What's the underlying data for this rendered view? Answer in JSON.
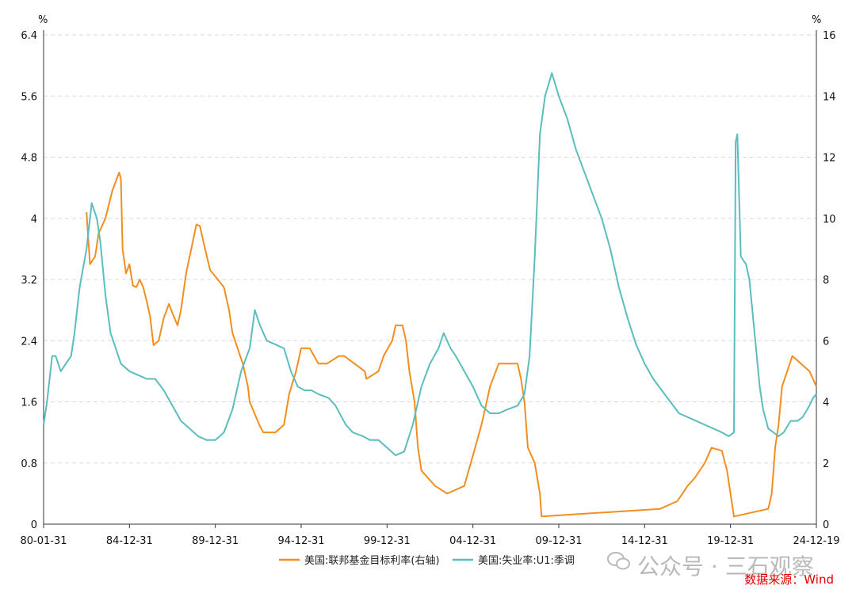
{
  "chart_data": {
    "type": "line",
    "title": "",
    "left_axis": {
      "unit": "%",
      "range": [
        0,
        6.4
      ],
      "ticks": [
        "0",
        "0.8",
        "1.6",
        "2.4",
        "3.2",
        "4",
        "4.8",
        "5.6",
        "6.4"
      ]
    },
    "right_axis": {
      "unit": "%",
      "range": [
        0,
        16
      ],
      "ticks": [
        "0",
        "2",
        "4",
        "6",
        "8",
        "10",
        "12",
        "14",
        "16"
      ]
    },
    "x_ticks": [
      {
        "label": "80-01-31",
        "year": 1980.0
      },
      {
        "label": "84-12-31",
        "year": 1985.0
      },
      {
        "label": "89-12-31",
        "year": 1990.0
      },
      {
        "label": "94-12-31",
        "year": 1995.0
      },
      {
        "label": "99-12-31",
        "year": 2000.0
      },
      {
        "label": "04-12-31",
        "year": 2005.0
      },
      {
        "label": "09-12-31",
        "year": 2010.0
      },
      {
        "label": "14-12-31",
        "year": 2015.0
      },
      {
        "label": "19-12-31",
        "year": 2020.0
      },
      {
        "label": "24-12-19",
        "year": 2025.0
      }
    ],
    "grid": "horizontal-dashed",
    "legend_position": "bottom",
    "series": [
      {
        "name": "美国:联邦基金目标利率(右轴)",
        "axis": "right",
        "color": "#f28e1f",
        "points": [
          [
            1982.5,
            10.2
          ],
          [
            1982.7,
            8.5
          ],
          [
            1983.0,
            8.75
          ],
          [
            1983.2,
            9.5
          ],
          [
            1983.6,
            10.0
          ],
          [
            1984.0,
            10.9
          ],
          [
            1984.4,
            11.5
          ],
          [
            1984.5,
            11.3
          ],
          [
            1984.6,
            9.0
          ],
          [
            1984.8,
            8.2
          ],
          [
            1985.0,
            8.5
          ],
          [
            1985.2,
            7.8
          ],
          [
            1985.4,
            7.75
          ],
          [
            1985.6,
            8.0
          ],
          [
            1985.8,
            7.75
          ],
          [
            1986.0,
            7.3
          ],
          [
            1986.2,
            6.8
          ],
          [
            1986.4,
            5.85
          ],
          [
            1986.7,
            6.0
          ],
          [
            1987.0,
            6.75
          ],
          [
            1987.3,
            7.2
          ],
          [
            1987.5,
            6.9
          ],
          [
            1987.8,
            6.5
          ],
          [
            1988.0,
            7.0
          ],
          [
            1988.3,
            8.2
          ],
          [
            1988.6,
            9.0
          ],
          [
            1988.9,
            9.8
          ],
          [
            1989.1,
            9.75
          ],
          [
            1989.4,
            9.0
          ],
          [
            1989.7,
            8.3
          ],
          [
            1990.0,
            8.1
          ],
          [
            1990.5,
            7.75
          ],
          [
            1990.8,
            7.0
          ],
          [
            1991.0,
            6.25
          ],
          [
            1991.3,
            5.75
          ],
          [
            1991.6,
            5.25
          ],
          [
            1991.9,
            4.5
          ],
          [
            1992.0,
            4.0
          ],
          [
            1992.3,
            3.6
          ],
          [
            1992.6,
            3.2
          ],
          [
            1992.8,
            3.0
          ],
          [
            1993.5,
            3.0
          ],
          [
            1994.0,
            3.25
          ],
          [
            1994.3,
            4.25
          ],
          [
            1994.7,
            5.0
          ],
          [
            1995.0,
            5.75
          ],
          [
            1995.5,
            5.75
          ],
          [
            1996.0,
            5.25
          ],
          [
            1996.5,
            5.25
          ],
          [
            1997.2,
            5.5
          ],
          [
            1997.5,
            5.5
          ],
          [
            1998.7,
            5.0
          ],
          [
            1998.8,
            4.75
          ],
          [
            1999.5,
            5.0
          ],
          [
            1999.8,
            5.5
          ],
          [
            2000.3,
            6.0
          ],
          [
            2000.5,
            6.5
          ],
          [
            2000.9,
            6.5
          ],
          [
            2001.1,
            6.0
          ],
          [
            2001.3,
            5.0
          ],
          [
            2001.6,
            4.0
          ],
          [
            2001.8,
            2.5
          ],
          [
            2002.0,
            1.75
          ],
          [
            2002.8,
            1.25
          ],
          [
            2003.5,
            1.0
          ],
          [
            2004.5,
            1.25
          ],
          [
            2005.0,
            2.25
          ],
          [
            2005.5,
            3.25
          ],
          [
            2006.0,
            4.5
          ],
          [
            2006.5,
            5.25
          ],
          [
            2007.6,
            5.25
          ],
          [
            2007.8,
            4.75
          ],
          [
            2008.0,
            4.0
          ],
          [
            2008.2,
            2.5
          ],
          [
            2008.6,
            2.0
          ],
          [
            2008.9,
            1.0
          ],
          [
            2009.0,
            0.25
          ],
          [
            2015.9,
            0.5
          ],
          [
            2016.9,
            0.75
          ],
          [
            2017.2,
            1.0
          ],
          [
            2017.5,
            1.25
          ],
          [
            2017.9,
            1.5
          ],
          [
            2018.2,
            1.75
          ],
          [
            2018.5,
            2.0
          ],
          [
            2018.9,
            2.5
          ],
          [
            2019.5,
            2.4
          ],
          [
            2019.8,
            1.75
          ],
          [
            2020.2,
            0.25
          ],
          [
            2022.2,
            0.5
          ],
          [
            2022.4,
            1.0
          ],
          [
            2022.6,
            2.5
          ],
          [
            2022.8,
            3.25
          ],
          [
            2023.0,
            4.5
          ],
          [
            2023.3,
            5.0
          ],
          [
            2023.6,
            5.5
          ],
          [
            2024.6,
            5.0
          ],
          [
            2024.8,
            4.75
          ],
          [
            2025.0,
            4.5
          ]
        ]
      },
      {
        "name": "美国:失业率:U1:季调",
        "axis": "left",
        "color": "#5bbdbd",
        "points": [
          [
            1980.0,
            1.3
          ],
          [
            1980.2,
            1.6
          ],
          [
            1980.5,
            2.2
          ],
          [
            1980.7,
            2.2
          ],
          [
            1981.0,
            2.0
          ],
          [
            1981.3,
            2.1
          ],
          [
            1981.6,
            2.2
          ],
          [
            1981.8,
            2.5
          ],
          [
            1982.1,
            3.1
          ],
          [
            1982.5,
            3.6
          ],
          [
            1982.8,
            4.2
          ],
          [
            1983.1,
            4.0
          ],
          [
            1983.3,
            3.7
          ],
          [
            1983.6,
            3.0
          ],
          [
            1983.9,
            2.5
          ],
          [
            1984.2,
            2.3
          ],
          [
            1984.5,
            2.1
          ],
          [
            1985.0,
            2.0
          ],
          [
            1985.5,
            1.95
          ],
          [
            1986.0,
            1.9
          ],
          [
            1986.5,
            1.9
          ],
          [
            1987.0,
            1.75
          ],
          [
            1987.5,
            1.55
          ],
          [
            1988.0,
            1.35
          ],
          [
            1988.5,
            1.25
          ],
          [
            1989.0,
            1.15
          ],
          [
            1989.5,
            1.1
          ],
          [
            1990.0,
            1.1
          ],
          [
            1990.5,
            1.2
          ],
          [
            1991.0,
            1.5
          ],
          [
            1991.5,
            2.0
          ],
          [
            1992.0,
            2.3
          ],
          [
            1992.3,
            2.8
          ],
          [
            1992.6,
            2.6
          ],
          [
            1993.0,
            2.4
          ],
          [
            1993.5,
            2.35
          ],
          [
            1994.0,
            2.3
          ],
          [
            1994.4,
            2.0
          ],
          [
            1994.8,
            1.8
          ],
          [
            1995.2,
            1.75
          ],
          [
            1995.6,
            1.75
          ],
          [
            1996.0,
            1.7
          ],
          [
            1996.6,
            1.65
          ],
          [
            1997.0,
            1.55
          ],
          [
            1997.6,
            1.3
          ],
          [
            1998.0,
            1.2
          ],
          [
            1998.6,
            1.15
          ],
          [
            1999.0,
            1.1
          ],
          [
            1999.5,
            1.1
          ],
          [
            2000.0,
            1.0
          ],
          [
            2000.5,
            0.9
          ],
          [
            2001.0,
            0.95
          ],
          [
            2001.5,
            1.3
          ],
          [
            2002.0,
            1.8
          ],
          [
            2002.5,
            2.1
          ],
          [
            2003.0,
            2.3
          ],
          [
            2003.3,
            2.5
          ],
          [
            2003.7,
            2.3
          ],
          [
            2004.0,
            2.2
          ],
          [
            2004.5,
            2.0
          ],
          [
            2005.0,
            1.8
          ],
          [
            2005.5,
            1.55
          ],
          [
            2006.0,
            1.45
          ],
          [
            2006.5,
            1.45
          ],
          [
            2007.0,
            1.5
          ],
          [
            2007.6,
            1.55
          ],
          [
            2008.0,
            1.7
          ],
          [
            2008.3,
            2.2
          ],
          [
            2008.6,
            3.5
          ],
          [
            2008.9,
            5.1
          ],
          [
            2009.2,
            5.6
          ],
          [
            2009.6,
            5.9
          ],
          [
            2010.0,
            5.6
          ],
          [
            2010.5,
            5.3
          ],
          [
            2011.0,
            4.9
          ],
          [
            2011.5,
            4.6
          ],
          [
            2012.0,
            4.3
          ],
          [
            2012.5,
            4.0
          ],
          [
            2013.0,
            3.6
          ],
          [
            2013.5,
            3.1
          ],
          [
            2014.0,
            2.7
          ],
          [
            2014.5,
            2.35
          ],
          [
            2015.0,
            2.1
          ],
          [
            2015.5,
            1.9
          ],
          [
            2016.0,
            1.75
          ],
          [
            2016.5,
            1.6
          ],
          [
            2017.0,
            1.45
          ],
          [
            2017.5,
            1.4
          ],
          [
            2018.0,
            1.35
          ],
          [
            2018.5,
            1.3
          ],
          [
            2019.0,
            1.25
          ],
          [
            2019.5,
            1.2
          ],
          [
            2019.9,
            1.15
          ],
          [
            2020.2,
            1.2
          ],
          [
            2020.3,
            5.0
          ],
          [
            2020.4,
            5.1
          ],
          [
            2020.6,
            3.5
          ],
          [
            2020.9,
            3.4
          ],
          [
            2021.1,
            3.2
          ],
          [
            2021.4,
            2.5
          ],
          [
            2021.7,
            1.8
          ],
          [
            2021.9,
            1.5
          ],
          [
            2022.2,
            1.25
          ],
          [
            2022.5,
            1.2
          ],
          [
            2022.8,
            1.15
          ],
          [
            2023.1,
            1.2
          ],
          [
            2023.5,
            1.35
          ],
          [
            2023.9,
            1.35
          ],
          [
            2024.2,
            1.4
          ],
          [
            2024.6,
            1.55
          ],
          [
            2024.8,
            1.65
          ],
          [
            2025.0,
            1.7
          ]
        ]
      }
    ]
  },
  "watermark": {
    "text": "公众号 · 三石观察"
  },
  "source": {
    "text": "数据来源：Wind"
  }
}
